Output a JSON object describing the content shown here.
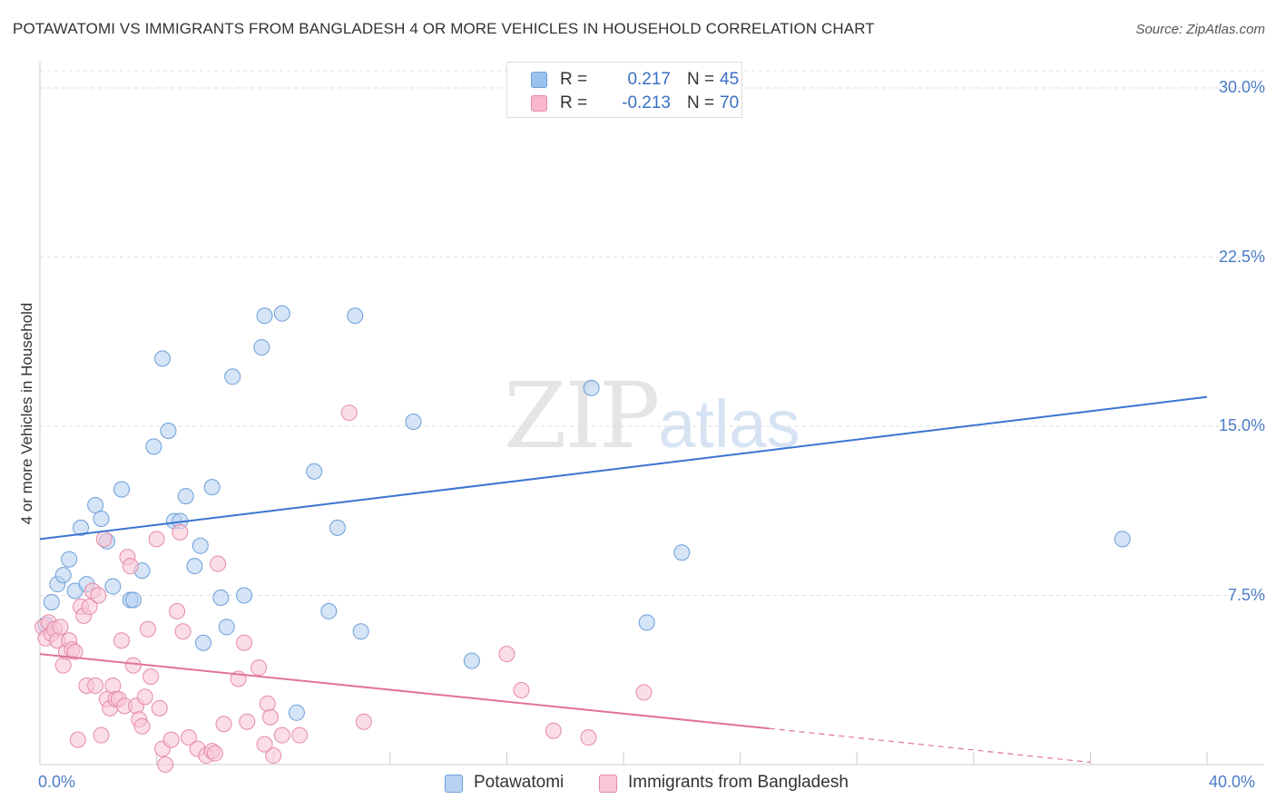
{
  "title": "POTAWATOMI VS IMMIGRANTS FROM BANGLADESH 4 OR MORE VEHICLES IN HOUSEHOLD CORRELATION CHART",
  "source": "Source: ZipAtlas.com",
  "watermark": {
    "zip": "ZIP",
    "atlas": "atlas"
  },
  "legend": {
    "rows": [
      {
        "r_label": "R =",
        "r_value": "0.217",
        "n_label": "N =",
        "n_value": "45",
        "color": "#9dc1ef",
        "border": "#6c9fd9"
      },
      {
        "r_label": "R =",
        "r_value": "-0.213",
        "n_label": "N =",
        "n_value": "70",
        "color": "#f7b7cc",
        "border": "#e58aa8"
      }
    ]
  },
  "bottom_legend": [
    {
      "label": "Potawatomi",
      "color": "#b9d2f2",
      "border": "#6c9fd9"
    },
    {
      "label": "Immigrants from Bangladesh",
      "color": "#f8c6d6",
      "border": "#e58aa8"
    }
  ],
  "chart_data": {
    "type": "scatter",
    "title": "POTAWATOMI VS IMMIGRANTS FROM BANGLADESH 4 OR MORE VEHICLES IN HOUSEHOLD CORRELATION CHART",
    "xlabel": "",
    "ylabel": "4 or more Vehicles in Household",
    "xlim": [
      0,
      40
    ],
    "ylim": [
      0,
      30
    ],
    "x_tick_labels": [
      "0.0%",
      "40.0%"
    ],
    "y_ticks": [
      7.5,
      15.0,
      22.5,
      30.0
    ],
    "y_tick_labels": [
      "7.5%",
      "15.0%",
      "22.5%",
      "30.0%"
    ],
    "series": [
      {
        "name": "Potawatomi",
        "color": "#6c9fd9",
        "fill": "#b9d2f2",
        "trend_color": "#3b74d1",
        "trend": {
          "x": [
            0,
            40
          ],
          "y": [
            10.0,
            16.3
          ]
        },
        "points": [
          [
            0.2,
            6.2
          ],
          [
            0.4,
            7.2
          ],
          [
            0.6,
            8.0
          ],
          [
            0.8,
            8.4
          ],
          [
            1.0,
            9.1
          ],
          [
            1.2,
            7.7
          ],
          [
            1.4,
            10.5
          ],
          [
            1.6,
            8.0
          ],
          [
            1.9,
            11.5
          ],
          [
            2.1,
            10.9
          ],
          [
            2.3,
            9.9
          ],
          [
            2.5,
            7.9
          ],
          [
            2.8,
            12.2
          ],
          [
            3.1,
            7.3
          ],
          [
            3.5,
            8.6
          ],
          [
            3.9,
            14.1
          ],
          [
            4.2,
            18.0
          ],
          [
            4.4,
            14.8
          ],
          [
            4.6,
            10.8
          ],
          [
            4.8,
            10.8
          ],
          [
            5.0,
            11.9
          ],
          [
            5.3,
            8.8
          ],
          [
            5.5,
            9.7
          ],
          [
            5.6,
            5.4
          ],
          [
            5.9,
            12.3
          ],
          [
            6.2,
            7.4
          ],
          [
            6.4,
            6.1
          ],
          [
            6.6,
            17.2
          ],
          [
            7.0,
            7.5
          ],
          [
            7.6,
            18.5
          ],
          [
            7.7,
            19.9
          ],
          [
            8.3,
            20.0
          ],
          [
            8.8,
            2.3
          ],
          [
            9.4,
            13.0
          ],
          [
            9.9,
            6.8
          ],
          [
            10.2,
            10.5
          ],
          [
            10.8,
            19.9
          ],
          [
            11.0,
            5.9
          ],
          [
            12.8,
            15.2
          ],
          [
            14.8,
            4.6
          ],
          [
            18.9,
            16.7
          ],
          [
            20.8,
            6.3
          ],
          [
            22.0,
            9.4
          ],
          [
            37.1,
            10.0
          ],
          [
            3.2,
            7.3
          ]
        ]
      },
      {
        "name": "Immigrants from Bangladesh",
        "color": "#e58aa8",
        "fill": "#f8c6d6",
        "trend_color": "#e07399",
        "trend": {
          "x": [
            0,
            25
          ],
          "y": [
            4.9,
            1.6
          ]
        },
        "trend_dashed": {
          "x": [
            25,
            36
          ],
          "y": [
            1.6,
            0.1
          ]
        },
        "points": [
          [
            0.1,
            6.1
          ],
          [
            0.2,
            5.6
          ],
          [
            0.3,
            6.3
          ],
          [
            0.4,
            5.8
          ],
          [
            0.5,
            6.0
          ],
          [
            0.6,
            5.5
          ],
          [
            0.7,
            6.1
          ],
          [
            0.8,
            4.4
          ],
          [
            0.9,
            5.0
          ],
          [
            1.0,
            5.5
          ],
          [
            1.1,
            5.1
          ],
          [
            1.2,
            5.0
          ],
          [
            1.3,
            1.1
          ],
          [
            1.4,
            7.0
          ],
          [
            1.5,
            6.6
          ],
          [
            1.6,
            3.5
          ],
          [
            1.7,
            7.0
          ],
          [
            1.8,
            7.7
          ],
          [
            1.9,
            3.5
          ],
          [
            2.0,
            7.5
          ],
          [
            2.1,
            1.3
          ],
          [
            2.2,
            10.0
          ],
          [
            2.3,
            2.9
          ],
          [
            2.4,
            2.5
          ],
          [
            2.5,
            3.5
          ],
          [
            2.6,
            2.9
          ],
          [
            2.7,
            2.9
          ],
          [
            2.8,
            5.5
          ],
          [
            2.9,
            2.6
          ],
          [
            3.0,
            9.2
          ],
          [
            3.1,
            8.8
          ],
          [
            3.2,
            4.4
          ],
          [
            3.3,
            2.6
          ],
          [
            3.4,
            2.0
          ],
          [
            3.5,
            1.7
          ],
          [
            3.6,
            3.0
          ],
          [
            3.7,
            6.0
          ],
          [
            3.8,
            3.9
          ],
          [
            4.0,
            10.0
          ],
          [
            4.1,
            2.5
          ],
          [
            4.2,
            0.7
          ],
          [
            4.3,
            0.0
          ],
          [
            4.5,
            1.1
          ],
          [
            4.7,
            6.8
          ],
          [
            4.8,
            10.3
          ],
          [
            5.1,
            1.2
          ],
          [
            5.4,
            0.7
          ],
          [
            5.7,
            0.4
          ],
          [
            5.9,
            0.6
          ],
          [
            6.0,
            0.5
          ],
          [
            6.1,
            8.9
          ],
          [
            6.3,
            1.8
          ],
          [
            6.8,
            3.8
          ],
          [
            7.0,
            5.4
          ],
          [
            7.1,
            1.9
          ],
          [
            7.5,
            4.3
          ],
          [
            7.8,
            2.7
          ],
          [
            7.9,
            2.1
          ],
          [
            8.0,
            0.4
          ],
          [
            8.3,
            1.3
          ],
          [
            8.9,
            1.3
          ],
          [
            10.6,
            15.6
          ],
          [
            11.1,
            1.9
          ],
          [
            16.0,
            4.9
          ],
          [
            16.5,
            3.3
          ],
          [
            17.6,
            1.5
          ],
          [
            18.8,
            1.2
          ],
          [
            20.7,
            3.2
          ],
          [
            7.7,
            0.9
          ],
          [
            4.9,
            5.9
          ]
        ]
      }
    ]
  }
}
